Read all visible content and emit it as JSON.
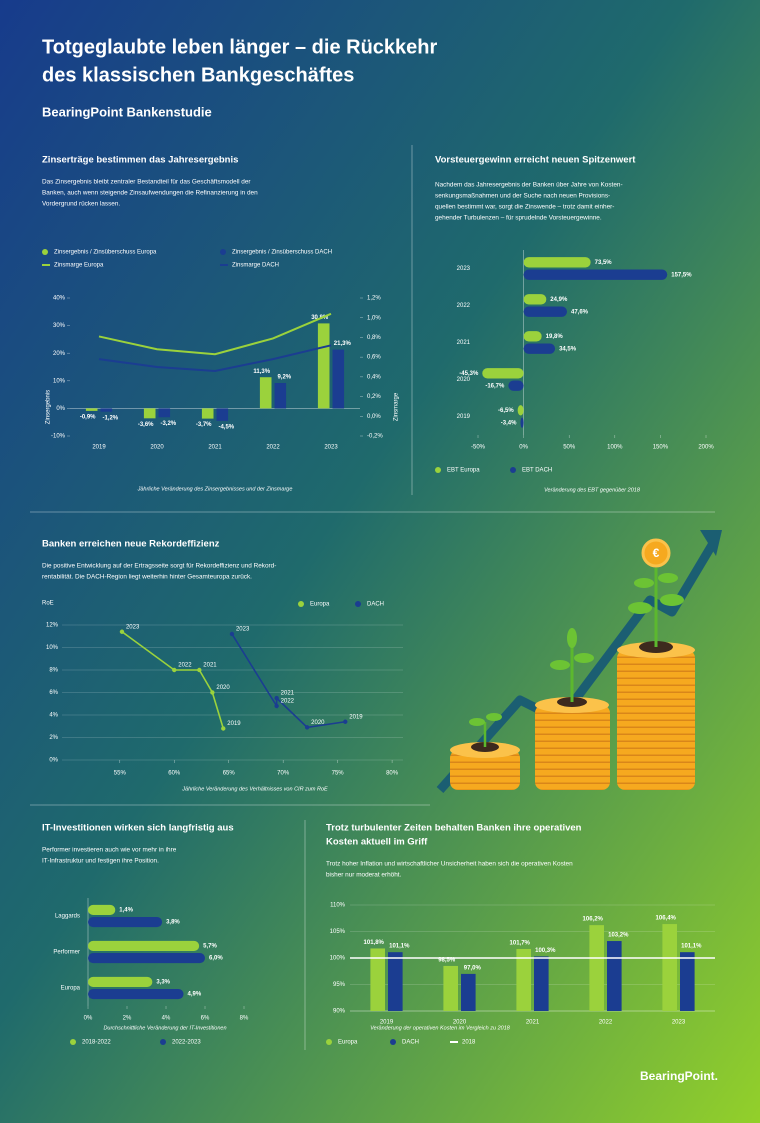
{
  "header": {
    "title_lines": [
      "Totgeglaubte leben länger – die Rückkehr",
      "des klassischen Bankgeschäftes"
    ],
    "subtitle": "BearingPoint Bankenstudie",
    "logo": "BearingPoint."
  },
  "chart_data": [
    {
      "type": "bar",
      "title_lines": [
        "Zinserträge bestimmen das Jahresergebnis"
      ],
      "description_lines": [
        "Das Zinsergebnis bleibt zentraler Bestandteil für das Geschäftsmodell der",
        "Banken, auch wenn steigende Zinsaufwendungen die Refinanzierung in den",
        "Vordergrund rücken lassen."
      ],
      "categories": [
        "2019",
        "2020",
        "2021",
        "2022",
        "2023"
      ],
      "series": [
        {
          "name": "Zinsergebnis / Zinsüberschuss Europa",
          "color": "#9bd23c",
          "values": [
            -0.9,
            -3.6,
            -3.7,
            11.3,
            30.8
          ],
          "value_labels": [
            "-0,9%",
            "-3,6%",
            "-3,7%",
            "11,3%",
            "30,8%"
          ]
        },
        {
          "name": "Zinsergebnis / Zinsüberschuss DACH",
          "color": "#1b3d91",
          "values": [
            -1.2,
            -3.2,
            -4.5,
            9.2,
            21.3
          ],
          "value_labels": [
            "-1,2%",
            "-3,2%",
            "-4,5%",
            "9,2%",
            "21,3%"
          ]
        },
        {
          "name": "Zinsmarge Europa",
          "color": "#9bd23c",
          "axis": "y2",
          "values": [
            0.81,
            0.68,
            0.63,
            0.79,
            1.04
          ]
        },
        {
          "name": "Zinsmarge DACH",
          "color": "#1b3d91",
          "axis": "y2",
          "values": [
            0.58,
            0.5,
            0.46,
            0.58,
            0.72
          ]
        }
      ],
      "ylim": [
        -10,
        40
      ],
      "yticks": [
        {
          "value": -10,
          "label": "-10%"
        },
        {
          "value": 0,
          "label": "0%"
        },
        {
          "value": 10,
          "label": "10%"
        },
        {
          "value": 20,
          "label": "20%"
        },
        {
          "value": 30,
          "label": "30%"
        },
        {
          "value": 40,
          "label": "40%"
        }
      ],
      "y2lim": [
        -0.2,
        1.2
      ],
      "y2ticks": [
        {
          "value": -0.2,
          "label": "-0,2%"
        },
        {
          "value": 0,
          "label": "0,0%"
        },
        {
          "value": 0.2,
          "label": "0,2%"
        },
        {
          "value": 0.4,
          "label": "0,4%"
        },
        {
          "value": 0.6,
          "label": "0,6%"
        },
        {
          "value": 0.8,
          "label": "0,8%"
        },
        {
          "value": 1.0,
          "label": "1,0%"
        },
        {
          "value": 1.2,
          "label": "1,2%"
        }
      ],
      "ylabel": "Zinsergebnis",
      "y2label": "Zinsmarge",
      "note": "Jährliche Veränderung des Zinsergebnisses und der Zinsmarge"
    },
    {
      "type": "barh",
      "title_lines": [
        "Vorsteuergewinn erreicht neuen Spitzenwert"
      ],
      "description_lines": [
        "Nachdem das Jahresergebnis der Banken über Jahre von Kosten-",
        "senkungsmaßnahmen und der Suche nach neuen Provisions-",
        "quellen bestimmt war, sorgt die Zinswende – trotz damit einher-",
        "gehender Turbulenzen – für sprudelnde Vorsteuergewinne."
      ],
      "categories": [
        "2023",
        "2022",
        "2021",
        "2020",
        "2019"
      ],
      "series": [
        {
          "name": "EBT Europa",
          "color": "#9bd23c",
          "values": [
            73.5,
            24.9,
            19.8,
            -45.3,
            -6.5
          ],
          "value_labels": [
            "73,5%",
            "24,9%",
            "19,8%",
            "-45,3%",
            "-6,5%"
          ]
        },
        {
          "name": "EBT DACH",
          "color": "#1b3d91",
          "values": [
            157.5,
            47.6,
            34.5,
            -16.7,
            -3.4
          ],
          "value_labels": [
            "157,5%",
            "47,6%",
            "34,5%",
            "-16,7%",
            "-3,4%"
          ]
        }
      ],
      "xlim": [
        -50,
        200
      ],
      "xticks": [
        {
          "value": -50,
          "label": "-50%"
        },
        {
          "value": 0,
          "label": "0%"
        },
        {
          "value": 50,
          "label": "50%"
        },
        {
          "value": 100,
          "label": "100%"
        },
        {
          "value": 150,
          "label": "150%"
        },
        {
          "value": 200,
          "label": "200%"
        }
      ],
      "note": "Veränderung des EBT gegenüber 2018"
    },
    {
      "type": "scatter",
      "title_lines": [
        "Banken erreichen neue Rekordeffizienz"
      ],
      "description_lines": [
        "Die positive Entwicklung auf der Ertragsseite sorgt für Rekordeffizienz und Rekord-",
        "rentabilität. Die DACH-Region liegt weiterhin hinter Gesamteuropa zurück."
      ],
      "series": [
        {
          "name": "Europa",
          "color": "#9bd23c",
          "x": [
            55.2,
            60,
            62.3,
            63.5,
            64.5
          ],
          "values": [
            11.4,
            8.0,
            8.0,
            6.0,
            2.8
          ],
          "labels": [
            "2023",
            "2022",
            "2021",
            "2020",
            "2019"
          ]
        },
        {
          "name": "DACH",
          "color": "#1b3d91",
          "x": [
            65.3,
            69.4,
            69.4,
            72.2,
            75.7
          ],
          "values": [
            11.2,
            4.8,
            5.5,
            2.9,
            3.4
          ],
          "labels": [
            "2023",
            "2022",
            "2021",
            "2020",
            "2019"
          ]
        }
      ],
      "xlim": [
        53,
        81
      ],
      "xticks": [
        {
          "value": 55,
          "label": "55%"
        },
        {
          "value": 60,
          "label": "60%"
        },
        {
          "value": 65,
          "label": "65%"
        },
        {
          "value": 70,
          "label": "70%"
        },
        {
          "value": 75,
          "label": "75%"
        },
        {
          "value": 80,
          "label": "80%"
        }
      ],
      "ylim": [
        0,
        12
      ],
      "yticks": [
        {
          "value": 0,
          "label": "0%"
        },
        {
          "value": 2,
          "label": "2%"
        },
        {
          "value": 4,
          "label": "4%"
        },
        {
          "value": 6,
          "label": "6%"
        },
        {
          "value": 8,
          "label": "8%"
        },
        {
          "value": 10,
          "label": "10%"
        },
        {
          "value": 12,
          "label": "12%"
        }
      ],
      "grid": true,
      "ylabel": "RoE",
      "note": "Jährliche Veränderung des Verhältnisses von CIR zum RoE"
    },
    {
      "type": "barh",
      "title_lines": [
        "IT-Investitionen wirken sich langfristig aus"
      ],
      "description_lines": [
        "Performer investieren auch wie vor mehr in ihre",
        "IT-Infrastruktur und festigen ihre Position."
      ],
      "categories": [
        "Laggards",
        "Performer",
        "Europa"
      ],
      "series": [
        {
          "name": "2018-2022",
          "color": "#9bd23c",
          "values": [
            1.4,
            5.7,
            3.3
          ],
          "value_labels": [
            "1,4%",
            "5,7%",
            "3,3%"
          ]
        },
        {
          "name": "2022-2023",
          "color": "#1b3d91",
          "values": [
            3.8,
            6.0,
            4.9
          ],
          "value_labels": [
            "3,8%",
            "6,0%",
            "4,9%"
          ]
        }
      ],
      "xlim": [
        0,
        8
      ],
      "xticks": [
        {
          "value": 0,
          "label": "0%"
        },
        {
          "value": 2,
          "label": "2%"
        },
        {
          "value": 4,
          "label": "4%"
        },
        {
          "value": 6,
          "label": "6%"
        },
        {
          "value": 8,
          "label": "8%"
        }
      ],
      "note": "Durchschnittliche Veränderung der IT-Investitionen"
    },
    {
      "type": "bar",
      "title_lines": [
        "Trotz turbulenter Zeiten behalten Banken ihre operativen",
        "Kosten aktuell im Griff"
      ],
      "description_lines": [
        "Trotz hoher Inflation und wirtschaftlicher Unsicherheit haben sich die operativen Kosten",
        "bisher nur moderat erhöht."
      ],
      "categories": [
        "2019",
        "2020",
        "2021",
        "2022",
        "2023"
      ],
      "series": [
        {
          "name": "Europa",
          "color": "#9bd23c",
          "values": [
            101.8,
            98.5,
            101.7,
            106.2,
            106.4
          ],
          "value_labels": [
            "101,8%",
            "98,5%",
            "101,7%",
            "106,2%",
            "106,4%"
          ]
        },
        {
          "name": "DACH",
          "color": "#1b3d91",
          "values": [
            101.1,
            97.0,
            100.3,
            103.2,
            101.1
          ],
          "value_labels": [
            "101,1%",
            "97,0%",
            "100,3%",
            "103,2%",
            "101,1%"
          ]
        }
      ],
      "reference": {
        "name": "2018",
        "value": 100,
        "color": "#ffffff"
      },
      "ylim": [
        90,
        110
      ],
      "yticks": [
        {
          "value": 90,
          "label": "90%"
        },
        {
          "value": 95,
          "label": "95%"
        },
        {
          "value": 100,
          "label": "100%"
        },
        {
          "value": 105,
          "label": "105%"
        },
        {
          "value": 110,
          "label": "110%"
        }
      ],
      "grid": true,
      "note": "Veränderung der operativen Kosten im Vergleich zu 2018"
    }
  ]
}
